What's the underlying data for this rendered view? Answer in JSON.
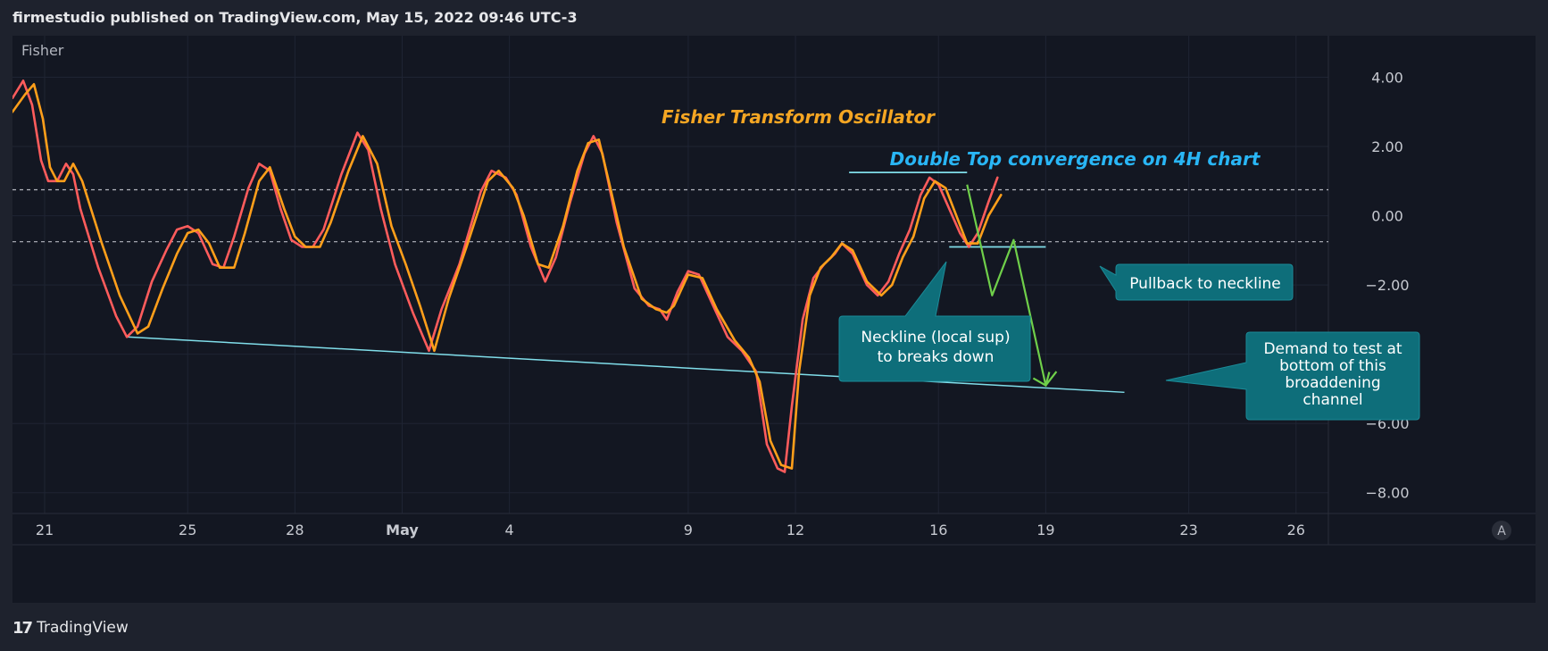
{
  "header": {
    "publisher_line": "firmestudio published on TradingView.com, May 15, 2022 09:46 UTC-3"
  },
  "footer": {
    "logo_text": "17",
    "brand": "TradingView"
  },
  "colors": {
    "background": "#131722",
    "fisher_line": "#ff5c5c",
    "trigger_line": "#ff9f1a",
    "trendline": "#80deea",
    "projection": "#6fcf4a",
    "callout": "#0e6e7a",
    "title_orange": "#f5a623",
    "subtitle_cyan": "#29b6f6",
    "grid": "#1f2433",
    "axis_text": "#c7cad1"
  },
  "chart_data": {
    "type": "line",
    "indicator_label": "Fisher",
    "title": "Fisher Transform Oscillator",
    "ylim": [
      -8.6,
      5.2
    ],
    "y_ticks": [
      "4.00",
      "2.00",
      "0.00",
      "−2.00",
      "−4.00",
      "−6.00",
      "−8.00"
    ],
    "y_tick_values": [
      4,
      2,
      0,
      -2,
      -4,
      -6,
      -8
    ],
    "x_ticks": [
      "21",
      "25",
      "28",
      "May",
      "4",
      "9",
      "12",
      "16",
      "19",
      "23",
      "26"
    ],
    "x_tick_days": [
      0,
      4,
      7,
      10,
      13,
      18,
      21,
      25,
      28,
      32,
      35
    ],
    "horizontal_levels": [
      0.75,
      -0.75
    ],
    "series": [
      {
        "values": [
          [
            -0.9,
            3.4
          ],
          [
            -0.6,
            3.9
          ],
          [
            -0.35,
            3.2
          ],
          [
            -0.1,
            1.6
          ],
          [
            0.1,
            1.0
          ],
          [
            0.35,
            1.0
          ],
          [
            0.6,
            1.5
          ],
          [
            0.8,
            1.2
          ],
          [
            1.0,
            0.2
          ],
          [
            1.5,
            -1.5
          ],
          [
            2.0,
            -2.9
          ],
          [
            2.3,
            -3.5
          ],
          [
            2.6,
            -3.2
          ],
          [
            3.0,
            -1.9
          ],
          [
            3.4,
            -1.0
          ],
          [
            3.7,
            -0.4
          ],
          [
            4.0,
            -0.3
          ],
          [
            4.3,
            -0.5
          ],
          [
            4.7,
            -1.4
          ],
          [
            5.0,
            -1.5
          ],
          [
            5.3,
            -0.6
          ],
          [
            5.7,
            0.8
          ],
          [
            6.0,
            1.5
          ],
          [
            6.3,
            1.3
          ],
          [
            6.6,
            0.2
          ],
          [
            6.9,
            -0.7
          ],
          [
            7.2,
            -0.9
          ],
          [
            7.5,
            -0.9
          ],
          [
            7.8,
            -0.4
          ],
          [
            8.3,
            1.2
          ],
          [
            8.75,
            2.4
          ],
          [
            9.05,
            1.9
          ],
          [
            9.4,
            0.2
          ],
          [
            9.8,
            -1.4
          ],
          [
            10.3,
            -2.8
          ],
          [
            10.75,
            -3.9
          ],
          [
            11.1,
            -2.7
          ],
          [
            11.6,
            -1.4
          ],
          [
            12.2,
            0.7
          ],
          [
            12.5,
            1.3
          ],
          [
            12.9,
            1.1
          ],
          [
            13.2,
            0.6
          ],
          [
            13.6,
            -0.9
          ],
          [
            14.0,
            -1.9
          ],
          [
            14.3,
            -1.2
          ],
          [
            14.7,
            0.4
          ],
          [
            15.1,
            1.8
          ],
          [
            15.35,
            2.3
          ],
          [
            15.6,
            1.8
          ],
          [
            16.0,
            -0.2
          ],
          [
            16.5,
            -2.1
          ],
          [
            16.9,
            -2.6
          ],
          [
            17.2,
            -2.7
          ],
          [
            17.4,
            -3.0
          ],
          [
            17.7,
            -2.2
          ],
          [
            18.0,
            -1.6
          ],
          [
            18.3,
            -1.7
          ],
          [
            18.7,
            -2.6
          ],
          [
            19.1,
            -3.5
          ],
          [
            19.5,
            -3.9
          ],
          [
            19.9,
            -4.5
          ],
          [
            20.2,
            -6.6
          ],
          [
            20.5,
            -7.3
          ],
          [
            20.7,
            -7.4
          ],
          [
            20.9,
            -5.5
          ],
          [
            21.2,
            -3.0
          ],
          [
            21.5,
            -1.8
          ],
          [
            21.8,
            -1.4
          ],
          [
            22.1,
            -1.1
          ],
          [
            22.3,
            -0.8
          ],
          [
            22.6,
            -1.1
          ],
          [
            23.0,
            -2.0
          ],
          [
            23.3,
            -2.3
          ],
          [
            23.6,
            -1.9
          ],
          [
            23.9,
            -1.1
          ],
          [
            24.2,
            -0.4
          ],
          [
            24.5,
            0.6
          ],
          [
            24.75,
            1.1
          ],
          [
            25.0,
            0.9
          ],
          [
            25.3,
            0.2
          ],
          [
            25.6,
            -0.5
          ],
          [
            25.85,
            -0.9
          ],
          [
            26.1,
            -0.5
          ],
          [
            26.4,
            0.4
          ],
          [
            26.65,
            1.1
          ]
        ]
      },
      {
        "values": [
          [
            -0.9,
            3.0
          ],
          [
            -0.55,
            3.5
          ],
          [
            -0.3,
            3.8
          ],
          [
            -0.05,
            2.8
          ],
          [
            0.15,
            1.4
          ],
          [
            0.35,
            1.0
          ],
          [
            0.55,
            1.0
          ],
          [
            0.8,
            1.5
          ],
          [
            1.05,
            1.0
          ],
          [
            1.6,
            -0.8
          ],
          [
            2.1,
            -2.3
          ],
          [
            2.6,
            -3.4
          ],
          [
            2.9,
            -3.2
          ],
          [
            3.3,
            -2.1
          ],
          [
            3.7,
            -1.1
          ],
          [
            4.0,
            -0.5
          ],
          [
            4.3,
            -0.4
          ],
          [
            4.6,
            -0.8
          ],
          [
            4.9,
            -1.5
          ],
          [
            5.3,
            -1.5
          ],
          [
            5.6,
            -0.5
          ],
          [
            6.0,
            1.0
          ],
          [
            6.3,
            1.4
          ],
          [
            6.7,
            0.2
          ],
          [
            7.0,
            -0.6
          ],
          [
            7.3,
            -0.9
          ],
          [
            7.7,
            -0.9
          ],
          [
            8.0,
            -0.2
          ],
          [
            8.5,
            1.3
          ],
          [
            8.9,
            2.3
          ],
          [
            9.3,
            1.5
          ],
          [
            9.7,
            -0.3
          ],
          [
            10.1,
            -1.4
          ],
          [
            10.5,
            -2.6
          ],
          [
            10.9,
            -3.9
          ],
          [
            11.3,
            -2.4
          ],
          [
            11.8,
            -0.9
          ],
          [
            12.4,
            1.0
          ],
          [
            12.7,
            1.3
          ],
          [
            13.1,
            0.8
          ],
          [
            13.4,
            0.0
          ],
          [
            13.8,
            -1.4
          ],
          [
            14.1,
            -1.5
          ],
          [
            14.5,
            -0.3
          ],
          [
            14.9,
            1.3
          ],
          [
            15.2,
            2.1
          ],
          [
            15.5,
            2.2
          ],
          [
            15.8,
            0.9
          ],
          [
            16.2,
            -0.9
          ],
          [
            16.7,
            -2.4
          ],
          [
            17.1,
            -2.7
          ],
          [
            17.4,
            -2.8
          ],
          [
            17.6,
            -2.6
          ],
          [
            18.0,
            -1.7
          ],
          [
            18.4,
            -1.8
          ],
          [
            18.8,
            -2.7
          ],
          [
            19.3,
            -3.6
          ],
          [
            19.7,
            -4.1
          ],
          [
            20.0,
            -4.8
          ],
          [
            20.3,
            -6.5
          ],
          [
            20.6,
            -7.2
          ],
          [
            20.9,
            -7.3
          ],
          [
            21.1,
            -4.5
          ],
          [
            21.4,
            -2.3
          ],
          [
            21.7,
            -1.5
          ],
          [
            22.0,
            -1.2
          ],
          [
            22.3,
            -0.8
          ],
          [
            22.6,
            -1.0
          ],
          [
            23.0,
            -1.9
          ],
          [
            23.4,
            -2.3
          ],
          [
            23.7,
            -2.0
          ],
          [
            24.0,
            -1.2
          ],
          [
            24.3,
            -0.6
          ],
          [
            24.6,
            0.5
          ],
          [
            24.9,
            1.0
          ],
          [
            25.2,
            0.8
          ],
          [
            25.5,
            0.0
          ],
          [
            25.8,
            -0.8
          ],
          [
            26.1,
            -0.8
          ],
          [
            26.4,
            0.0
          ],
          [
            26.75,
            0.6
          ]
        ]
      }
    ],
    "annotations": {
      "title_text": "Fisher Transform Oscillator",
      "double_top_text": "Double Top convergence on 4H chart",
      "neckline_line1": "Neckline (local sup)",
      "neckline_line2": "to breaks down",
      "pullback_text": "Pullback to neckline",
      "demand_lines": [
        "Demand to test at",
        "bottom of this",
        "broaddening",
        "channel"
      ],
      "support_trendline": [
        [
          2.3,
          -3.5
        ],
        [
          30.2,
          -5.1
        ]
      ],
      "double_top_line": [
        [
          22.5,
          1.25
        ],
        [
          25.8,
          1.25
        ]
      ],
      "neckline": [
        [
          25.3,
          -0.9
        ],
        [
          28.0,
          -0.9
        ]
      ],
      "projection_path": [
        [
          25.8,
          0.9
        ],
        [
          26.5,
          -2.3
        ],
        [
          27.1,
          -0.7
        ],
        [
          28.0,
          -4.9
        ],
        [
          28.3,
          -4.5
        ]
      ]
    },
    "scale_button": "A"
  }
}
